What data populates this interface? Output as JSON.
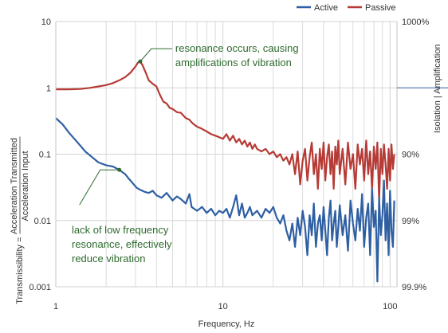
{
  "chart_data": {
    "type": "line",
    "x_scale": "log",
    "y_scale": "log",
    "xlim": [
      1,
      110
    ],
    "ylim": [
      0.001,
      10
    ],
    "xlabel": "Frequency, Hz",
    "ylabel_top": "Acceleration Transmitted",
    "ylabel_bottom": "Acceleration Input",
    "ylabel_prefix": "Transmissibility =",
    "y2label": "Isolation | Amplification",
    "x_ticks": [
      {
        "value": 1,
        "label": "1"
      },
      {
        "value": 10,
        "label": "10"
      },
      {
        "value": 100,
        "label": "100"
      }
    ],
    "y_ticks": [
      {
        "value": 10,
        "label": "10"
      },
      {
        "value": 1,
        "label": "1"
      },
      {
        "value": 0.1,
        "label": "0.1"
      },
      {
        "value": 0.01,
        "label": "0.01"
      },
      {
        "value": 0.001,
        "label": "0.001"
      }
    ],
    "y2_ticks": [
      {
        "value": 10,
        "label": "1000%"
      },
      {
        "value": 0.1,
        "label": "90%"
      },
      {
        "value": 0.01,
        "label": "99%"
      },
      {
        "value": 0.001,
        "label": "99.9%"
      }
    ],
    "grid": true,
    "legend_position": "top-right",
    "series": [
      {
        "name": "Active",
        "color": "#2e5fa3",
        "x": [
          1.0,
          1.1,
          1.2,
          1.35,
          1.5,
          1.65,
          1.8,
          2.0,
          2.2,
          2.4,
          2.6,
          2.75,
          2.9,
          3.05,
          3.2,
          3.4,
          3.6,
          3.8,
          4.0,
          4.3,
          4.6,
          5.0,
          5.3,
          5.6,
          6.0,
          6.3,
          6.5,
          7.0,
          7.5,
          8.0,
          8.5,
          9.0,
          9.5,
          10.0,
          10.5,
          11.0,
          11.5,
          12.0,
          12.5,
          13.0,
          13.5,
          14.0,
          14.5,
          15.0,
          16.0,
          17.0,
          18.0,
          19.0,
          20.0,
          21.0,
          22.0,
          23.0,
          24.0,
          25.0,
          26.0,
          27.0,
          28.0,
          29.0,
          30.0,
          31.0,
          32.0,
          33.0,
          34.0,
          35.0,
          36.0,
          37.0,
          38.0,
          39.0,
          40.0,
          41.0,
          42.0,
          43.0,
          44.0,
          45.0,
          46.0,
          47.0,
          48.0,
          49.0,
          50.0,
          52.0,
          54.0,
          56.0,
          58.0,
          60.0,
          62.0,
          64.0,
          66.0,
          68.0,
          70.0,
          72.0,
          74.0,
          76.0,
          78.0,
          80.0,
          82.0,
          84.0,
          86.0,
          88.0,
          90.0,
          92.0,
          94.0,
          96.0,
          98.0,
          100.0,
          102.0,
          104.0,
          106.0
        ],
        "y": [
          0.35,
          0.28,
          0.21,
          0.15,
          0.11,
          0.09,
          0.075,
          0.068,
          0.065,
          0.058,
          0.05,
          0.042,
          0.036,
          0.031,
          0.029,
          0.027,
          0.026,
          0.028,
          0.024,
          0.022,
          0.026,
          0.02,
          0.023,
          0.021,
          0.018,
          0.025,
          0.016,
          0.014,
          0.016,
          0.013,
          0.015,
          0.012,
          0.014,
          0.013,
          0.015,
          0.011,
          0.016,
          0.024,
          0.012,
          0.018,
          0.011,
          0.013,
          0.016,
          0.012,
          0.014,
          0.011,
          0.015,
          0.013,
          0.016,
          0.011,
          0.009,
          0.012,
          0.007,
          0.005,
          0.009,
          0.004,
          0.011,
          0.006,
          0.014,
          0.008,
          0.003,
          0.012,
          0.006,
          0.018,
          0.004,
          0.009,
          0.012,
          0.005,
          0.016,
          0.007,
          0.003,
          0.011,
          0.02,
          0.005,
          0.009,
          0.014,
          0.004,
          0.008,
          0.017,
          0.006,
          0.012,
          0.0035,
          0.02,
          0.009,
          0.005,
          0.015,
          0.007,
          0.025,
          0.004,
          0.011,
          0.018,
          0.003,
          0.03,
          0.008,
          0.014,
          0.0012,
          0.022,
          0.006,
          0.012,
          0.04,
          0.005,
          0.018,
          0.003,
          0.028,
          0.007,
          0.004,
          0.02
        ]
      },
      {
        "name": "Passive",
        "color": "#b63a35",
        "x": [
          1.0,
          1.2,
          1.4,
          1.6,
          1.8,
          2.0,
          2.2,
          2.4,
          2.6,
          2.8,
          3.0,
          3.1,
          3.2,
          3.3,
          3.45,
          3.6,
          3.8,
          4.0,
          4.2,
          4.4,
          4.6,
          4.8,
          5.0,
          5.3,
          5.6,
          6.0,
          6.3,
          6.6,
          7.0,
          7.5,
          8.0,
          8.5,
          9.0,
          9.5,
          10.0,
          10.5,
          11.0,
          11.5,
          12.0,
          12.5,
          13.0,
          13.5,
          14.0,
          14.5,
          15.0,
          15.5,
          16.0,
          17.0,
          18.0,
          19.0,
          20.0,
          21.0,
          22.0,
          23.0,
          24.0,
          25.0,
          26.0,
          27.0,
          28.0,
          29.0,
          30.0,
          31.0,
          32.0,
          33.0,
          34.0,
          35.0,
          36.0,
          37.0,
          38.0,
          39.0,
          40.0,
          41.0,
          42.0,
          43.0,
          44.0,
          45.0,
          46.0,
          47.0,
          48.0,
          49.0,
          50.0,
          52.0,
          54.0,
          56.0,
          58.0,
          60.0,
          62.0,
          64.0,
          66.0,
          68.0,
          70.0,
          72.0,
          74.0,
          76.0,
          78.0,
          80.0,
          82.0,
          84.0,
          86.0,
          88.0,
          90.0,
          92.0,
          94.0,
          96.0,
          98.0,
          100.0,
          102.0,
          104.0,
          106.0
        ],
        "y": [
          0.95,
          0.95,
          0.96,
          1.0,
          1.05,
          1.1,
          1.18,
          1.3,
          1.45,
          1.7,
          2.1,
          2.4,
          2.5,
          2.2,
          1.7,
          1.3,
          1.15,
          1.05,
          0.78,
          0.62,
          0.58,
          0.5,
          0.48,
          0.43,
          0.42,
          0.35,
          0.33,
          0.29,
          0.26,
          0.24,
          0.22,
          0.2,
          0.19,
          0.18,
          0.17,
          0.2,
          0.16,
          0.19,
          0.15,
          0.17,
          0.14,
          0.16,
          0.13,
          0.15,
          0.12,
          0.14,
          0.12,
          0.11,
          0.12,
          0.1,
          0.11,
          0.09,
          0.1,
          0.08,
          0.09,
          0.07,
          0.1,
          0.05,
          0.11,
          0.035,
          0.08,
          0.12,
          0.04,
          0.09,
          0.15,
          0.05,
          0.1,
          0.03,
          0.12,
          0.06,
          0.15,
          0.04,
          0.09,
          0.14,
          0.05,
          0.11,
          0.03,
          0.13,
          0.07,
          0.16,
          0.05,
          0.12,
          0.035,
          0.15,
          0.06,
          0.1,
          0.03,
          0.14,
          0.07,
          0.12,
          0.04,
          0.16,
          0.05,
          0.11,
          0.03,
          0.13,
          0.06,
          0.15,
          0.02,
          0.12,
          0.05,
          0.14,
          0.07,
          0.03,
          0.12,
          0.04,
          0.14,
          0.06,
          0.1
        ]
      }
    ],
    "annotations": [
      {
        "lines": [
          "resonance occurs, causing",
          "amplifications of vibration"
        ],
        "point": {
          "x": 3.2,
          "y": 2.5
        }
      },
      {
        "lines": [
          "lack of low frequency",
          "resonance, effectively",
          "reduce vibration"
        ],
        "point": {
          "x": 2.4,
          "y": 0.058
        }
      }
    ]
  }
}
